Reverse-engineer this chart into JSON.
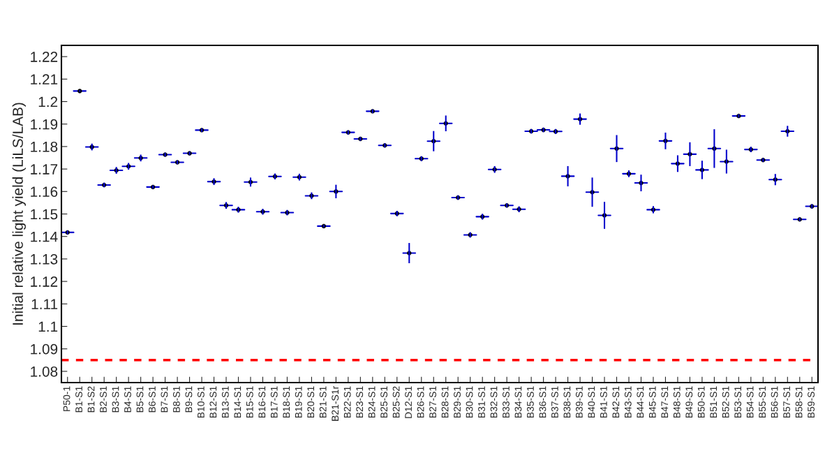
{
  "chart_data": {
    "type": "scatter",
    "ylabel": "Initial relative light yield (LiLS/LAB)",
    "categories": [
      "P50-1",
      "B1-S1",
      "B1-S2",
      "B2-S1",
      "B3-S1",
      "B4-S1",
      "B5-S1",
      "B6-S1",
      "B7-S1",
      "B8-S1",
      "B9-S1",
      "B10-S1",
      "B12-S1",
      "B13-S1",
      "B14-S1",
      "B15-S1",
      "B16-S1",
      "B17-S1",
      "B18-S1",
      "B19-S1",
      "B20-S1",
      "B21-S1",
      "B21-S1r",
      "B22-S1",
      "B23-S1",
      "B24-S1",
      "B25-S1",
      "B25-S2",
      "D12-S1",
      "B26-S1",
      "B27-S1",
      "B28-S1",
      "B29-S1",
      "B30-S1",
      "B31-S1",
      "B32-S1",
      "B33-S1",
      "B34-S1",
      "B35-S1",
      "B36-S1",
      "B37-S1",
      "B38-S1",
      "B39-S1",
      "B40-S1",
      "B41-S1",
      "B42-S1",
      "B43-S1",
      "B44-S1",
      "B45-S1",
      "B47-S1",
      "B48-S1",
      "B49-S1",
      "B50-S1",
      "B51-S1",
      "B52-S1",
      "B53-S1",
      "B54-S1",
      "B55-S1",
      "B56-S1",
      "B57-S1",
      "B58-S1",
      "B59-S1"
    ],
    "series": [
      {
        "values": [
          1.1418,
          1.2047,
          1.1798,
          1.1629,
          1.1694,
          1.1712,
          1.1749,
          1.162,
          1.1764,
          1.173,
          1.177,
          1.1873,
          1.1644,
          1.1538,
          1.1519,
          1.1642,
          1.151,
          1.1667,
          1.1506,
          1.1664,
          1.1581,
          1.1446,
          1.16,
          1.1863,
          1.1834,
          1.1957,
          1.1805,
          1.1502,
          1.1326,
          1.1746,
          1.1824,
          1.1903,
          1.1573,
          1.1407,
          1.1488,
          1.1698,
          1.1538,
          1.1521,
          1.1868,
          1.1874,
          1.1867,
          1.1668,
          1.1922,
          1.1597,
          1.1494,
          1.1791,
          1.1679,
          1.1638,
          1.1519,
          1.1825,
          1.1724,
          1.1766,
          1.1696,
          1.1791,
          1.1733,
          1.1936,
          1.1787,
          1.174,
          1.1653,
          1.1868,
          1.1476,
          1.1534
        ],
        "errors": [
          0.0008,
          0.0003,
          0.0015,
          0.001,
          0.0015,
          0.0015,
          0.0015,
          0.0007,
          0.0008,
          0.0008,
          0.0007,
          0.0008,
          0.0015,
          0.0015,
          0.0013,
          0.002,
          0.0013,
          0.0013,
          0.0012,
          0.0015,
          0.0015,
          0.0005,
          0.003,
          0.0009,
          0.0008,
          0.0008,
          0.0009,
          0.0012,
          0.0045,
          0.0011,
          0.0045,
          0.0035,
          0.001,
          0.0012,
          0.0013,
          0.0015,
          0.0009,
          0.0013,
          0.001,
          0.001,
          0.0011,
          0.0045,
          0.0025,
          0.0065,
          0.006,
          0.006,
          0.0015,
          0.0037,
          0.0016,
          0.0037,
          0.0037,
          0.0053,
          0.0041,
          0.0086,
          0.0053,
          0.0007,
          0.0012,
          0.0008,
          0.0025,
          0.0024,
          0.0007,
          0.0009
        ],
        "color": "#000000"
      }
    ],
    "ylim": [
      1.075,
      1.225
    ],
    "yticks": [
      1.08,
      1.09,
      {
        "value": 1.1,
        "label": "1.1"
      },
      1.11,
      1.12,
      1.13,
      1.14,
      1.15,
      1.16,
      1.17,
      1.18,
      1.19,
      {
        "value": 1.2,
        "label": "1.2"
      },
      1.21,
      1.22
    ],
    "ref_lines": [
      {
        "axis": "y",
        "value": 1.085,
        "color": "#ff0000",
        "line_style": "dashed"
      }
    ],
    "marker": "circle",
    "grid": false,
    "legend": false
  }
}
